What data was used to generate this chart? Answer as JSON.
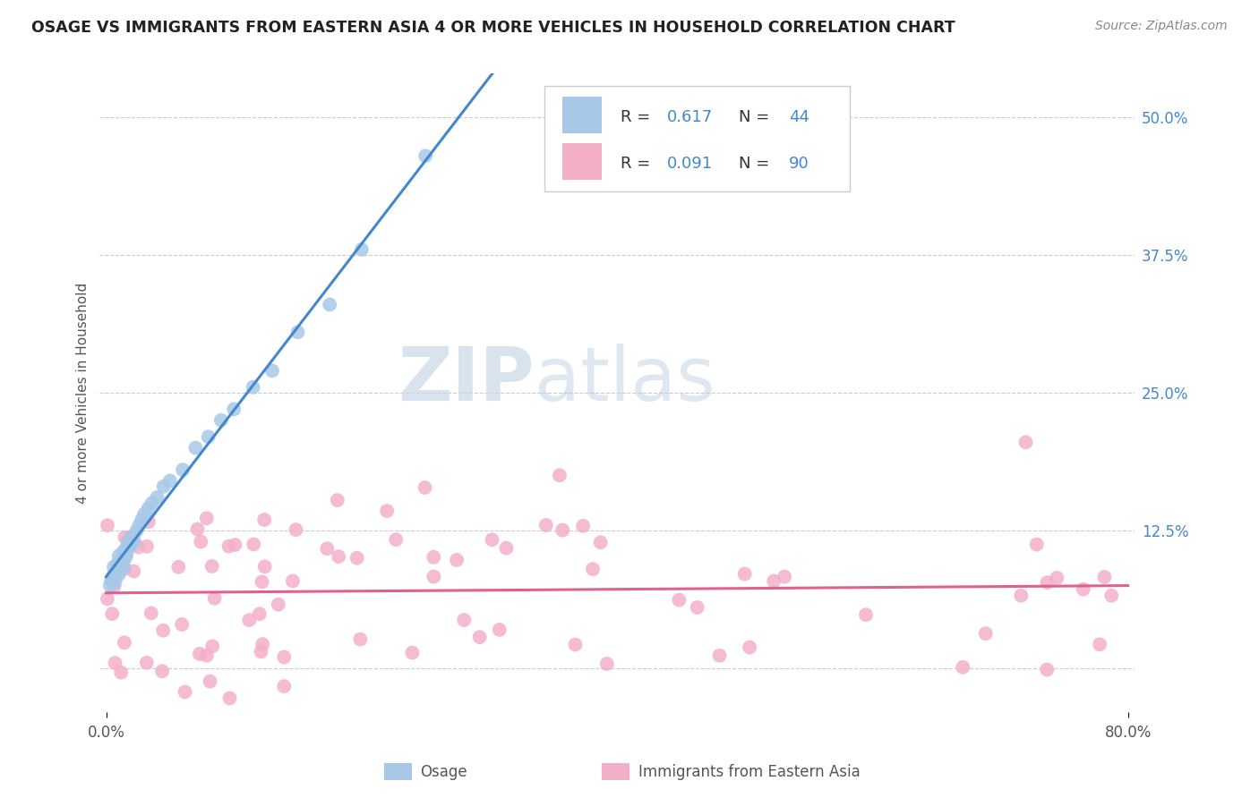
{
  "title": "OSAGE VS IMMIGRANTS FROM EASTERN ASIA 4 OR MORE VEHICLES IN HOUSEHOLD CORRELATION CHART",
  "source": "Source: ZipAtlas.com",
  "ylabel": "4 or more Vehicles in Household",
  "xmin": 0.0,
  "xmax": 0.8,
  "ymin": -0.04,
  "ymax": 0.54,
  "xtick_positions": [
    0.0,
    0.8
  ],
  "xtick_labels": [
    "0.0%",
    "80.0%"
  ],
  "ytick_positions": [
    0.0,
    0.125,
    0.25,
    0.375,
    0.5
  ],
  "ytick_labels": [
    "",
    "12.5%",
    "25.0%",
    "37.5%",
    "50.0%"
  ],
  "osage_color": "#a8c8e8",
  "eastern_asia_color": "#f4afc8",
  "osage_line_color": "#4488cc",
  "eastern_asia_line_color": "#e06090",
  "text_color": "#4488cc",
  "osage_R": 0.617,
  "osage_N": 44,
  "eastern_asia_R": 0.091,
  "eastern_asia_N": 90,
  "watermark_zip": "ZIP",
  "watermark_atlas": "atlas",
  "background_color": "#ffffff",
  "grid_color": "#cccccc",
  "title_color": "#222222",
  "source_color": "#888888",
  "ylabel_color": "#555555",
  "xtick_color": "#555555",
  "legend_edge_color": "#cccccc"
}
